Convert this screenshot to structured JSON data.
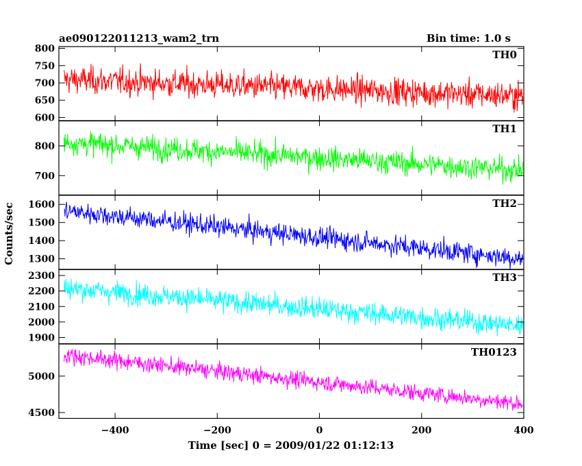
{
  "header": {
    "title": "ae090122011213_wam2_trn",
    "bin_time": "Bin time: 1.0 s"
  },
  "chart_data": {
    "type": "line",
    "x_label": "Time [sec] 0 = 2009/01/22 01:12:13",
    "y_label": "Counts/sec",
    "xlim": [
      -510,
      400
    ],
    "x_ticks": [
      -400,
      -200,
      0,
      200,
      400
    ],
    "x_tick_labels": [
      "−400",
      "−200",
      "0",
      "200",
      "400"
    ],
    "series": [
      {
        "name": "TH0",
        "color": "#ff0000",
        "ylim": [
          590,
          805
        ],
        "y_ticks": [
          600,
          650,
          700,
          750,
          800
        ],
        "trend_start": 710,
        "trend_end": 662,
        "noise": 28
      },
      {
        "name": "TH1",
        "color": "#00ff00",
        "ylim": [
          635,
          885
        ],
        "y_ticks": [
          700,
          800
        ],
        "trend_start": 812,
        "trend_end": 718,
        "noise": 28
      },
      {
        "name": "TH2",
        "color": "#0000ff",
        "ylim": [
          1240,
          1650
        ],
        "y_ticks": [
          1300,
          1400,
          1500,
          1600
        ],
        "trend_start": 1565,
        "trend_end": 1300,
        "noise": 40
      },
      {
        "name": "TH3",
        "color": "#00ffff",
        "ylim": [
          1860,
          2340
        ],
        "y_ticks": [
          1900,
          2000,
          2100,
          2200,
          2300
        ],
        "trend_start": 2220,
        "trend_end": 1975,
        "noise": 50
      },
      {
        "name": "TH0123",
        "color": "#ff00ff",
        "ylim": [
          4420,
          5440
        ],
        "y_ticks": [
          4500,
          5000
        ],
        "trend_start": 5290,
        "trend_end": 4620,
        "noise": 80
      }
    ]
  }
}
